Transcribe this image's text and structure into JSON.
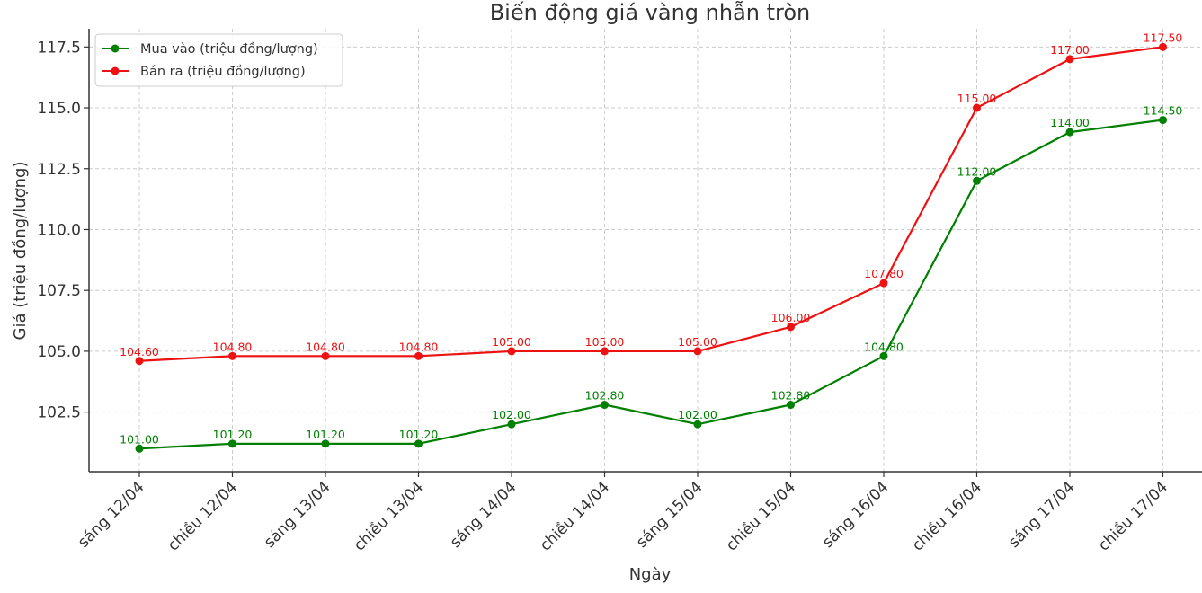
{
  "chart_data": {
    "type": "line",
    "title": "Biến động giá vàng nhẫn tròn",
    "xlabel": "Ngày",
    "ylabel": "Giá (triệu đồng/lượng)",
    "categories": [
      "sáng 12/04",
      "chiều 12/04",
      "sáng 13/04",
      "chiều 13/04",
      "sáng 14/04",
      "chiều 14/04",
      "sáng 15/04",
      "chiều 15/04",
      "sáng 16/04",
      "chiều 16/04",
      "sáng 17/04",
      "chiều 17/04"
    ],
    "ylim": [
      100.05,
      118.25
    ],
    "yticks": [
      102.5,
      105.0,
      107.5,
      110.0,
      112.5,
      115.0,
      117.5
    ],
    "ytick_labels": [
      "102.5",
      "105.0",
      "107.5",
      "110.0",
      "112.5",
      "115.0",
      "117.5"
    ],
    "grid": true,
    "legend_position": "top-left",
    "series": [
      {
        "name": "Mua vào (triệu đồng/lượng)",
        "color": "#008000",
        "values": [
          101.0,
          101.2,
          101.2,
          101.2,
          102.0,
          102.8,
          102.0,
          102.8,
          104.8,
          112.0,
          114.0,
          114.5
        ],
        "labels": [
          "101.00",
          "101.20",
          "101.20",
          "101.20",
          "102.00",
          "102.80",
          "102.00",
          "102.80",
          "104.80",
          "112.00",
          "114.00",
          "114.50"
        ]
      },
      {
        "name": "Bán ra (triệu đồng/lượng)",
        "color": "#ee1111",
        "values": [
          104.6,
          104.8,
          104.8,
          104.8,
          105.0,
          105.0,
          105.0,
          106.0,
          107.8,
          115.0,
          117.0,
          117.5
        ],
        "labels": [
          "104.60",
          "104.80",
          "104.80",
          "104.80",
          "105.00",
          "105.00",
          "105.00",
          "106.00",
          "107.80",
          "115.00",
          "117.00",
          "117.50"
        ]
      }
    ]
  }
}
